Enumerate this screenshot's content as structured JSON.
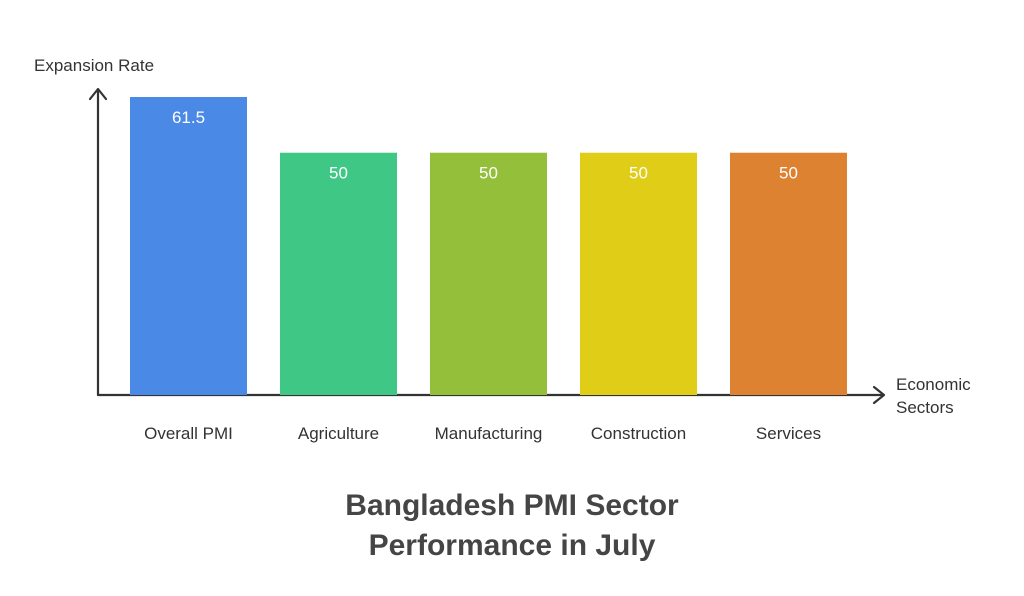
{
  "chart_data": {
    "type": "bar",
    "title": [
      "Bangladesh PMI Sector",
      "Performance in July"
    ],
    "ylabel": "Expansion Rate",
    "xlabel": [
      "Economic",
      "Sectors"
    ],
    "categories": [
      "Overall PMI",
      "Agriculture",
      "Manufacturing",
      "Construction",
      "Services"
    ],
    "values": [
      61.5,
      50,
      50,
      50,
      50
    ],
    "value_labels": [
      "61.5",
      "50",
      "50",
      "50",
      "50"
    ],
    "colors": [
      "#4a89e6",
      "#3ec785",
      "#93bf3b",
      "#dfcd17",
      "#dd8230"
    ],
    "ylim": [
      0,
      61.5
    ],
    "grid": false,
    "legend": "none"
  }
}
